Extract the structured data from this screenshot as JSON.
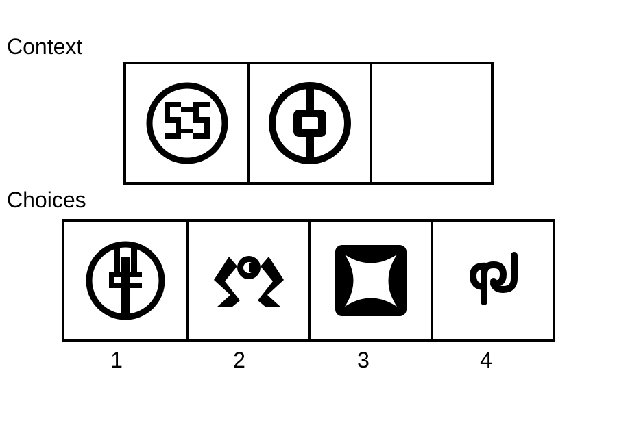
{
  "context": {
    "label": "Context",
    "cells": [
      {
        "icon": "icbc-logo-icon"
      },
      {
        "icon": "bank-of-china-logo-icon"
      },
      {
        "icon": "empty-slot"
      }
    ]
  },
  "choices": {
    "label": "Choices",
    "options": [
      {
        "number": "1",
        "icon": "agricultural-bank-logo-icon"
      },
      {
        "number": "2",
        "icon": "hands-coin-logo-icon"
      },
      {
        "number": "3",
        "icon": "square-star-logo-icon"
      },
      {
        "number": "4",
        "icon": "spdb-logo-icon"
      }
    ]
  }
}
